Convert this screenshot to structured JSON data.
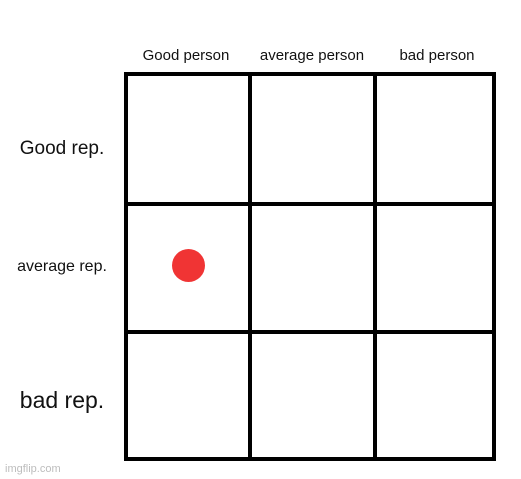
{
  "columns": [
    "Good person",
    "average person",
    "bad person"
  ],
  "rows": [
    "Good rep.",
    "average rep.",
    "bad rep."
  ],
  "marker": {
    "column": 0,
    "row": 1,
    "color": "#f03434"
  },
  "watermark": "imgflip.com"
}
